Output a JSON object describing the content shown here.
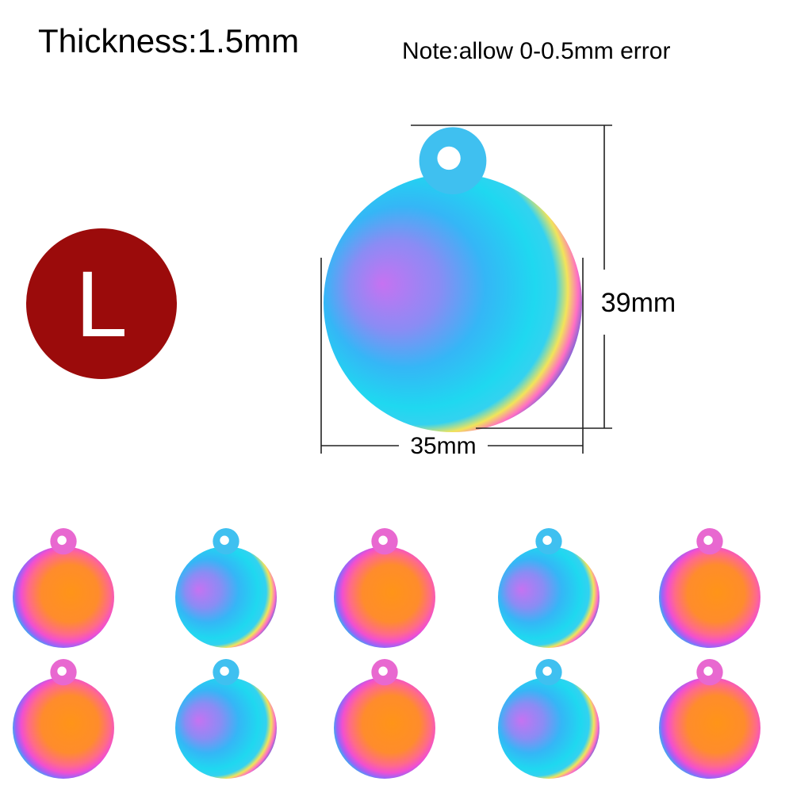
{
  "header": {
    "thickness": "Thickness:1.5mm",
    "note": "Note:allow 0-0.5mm error"
  },
  "size_badge": "L",
  "dimensions": {
    "height": "39mm",
    "width": "35mm"
  }
}
